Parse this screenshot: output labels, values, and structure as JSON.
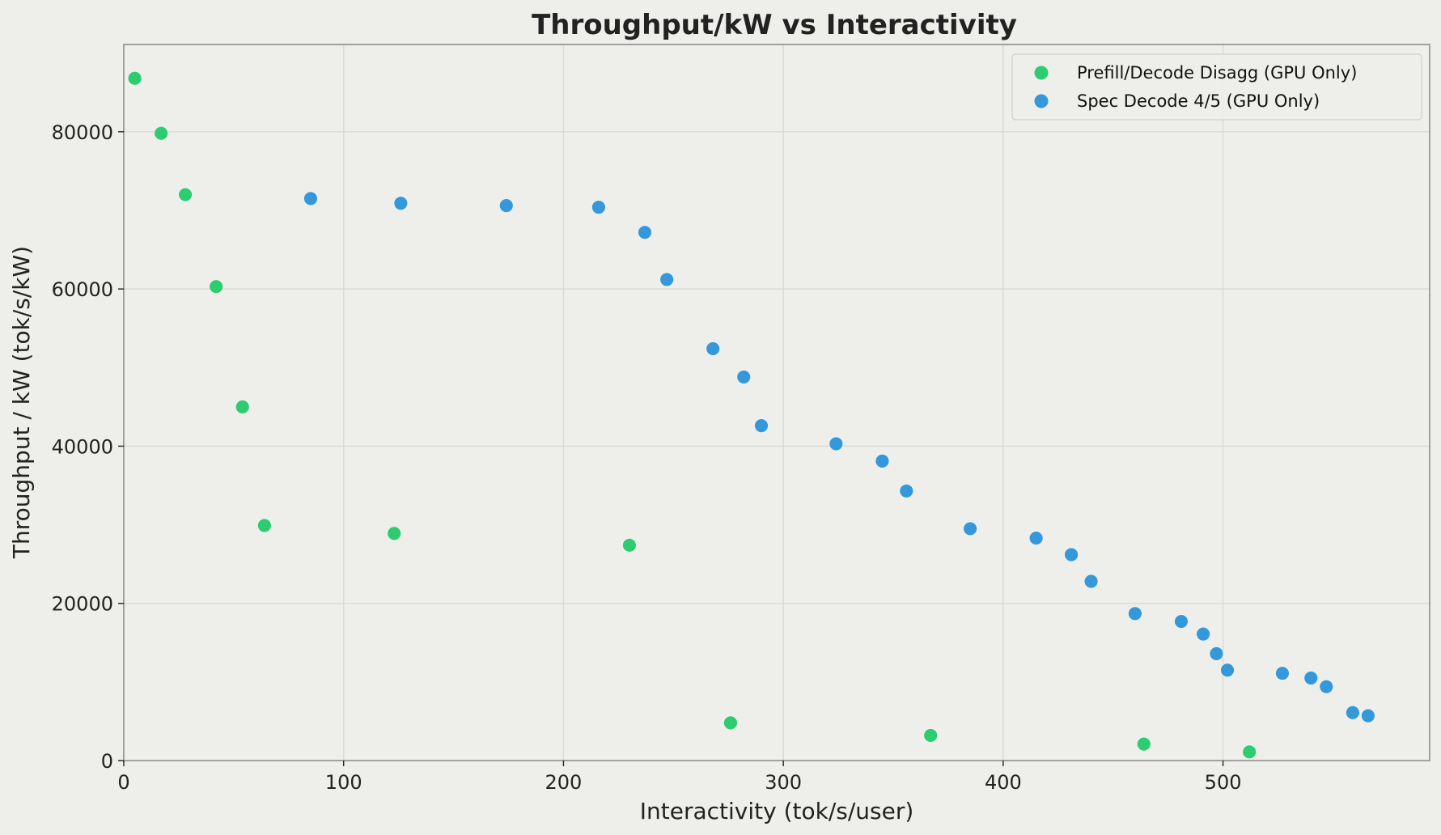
{
  "chart_data": {
    "type": "scatter",
    "title": "Throughput/kW vs Interactivity",
    "xlabel": "Interactivity (tok/s/user)",
    "ylabel": "Throughput / kW  (tok/s/kW)",
    "xlim": [
      0,
      594
    ],
    "ylim": [
      0,
      91100
    ],
    "xticks": [
      0,
      100,
      200,
      300,
      400,
      500
    ],
    "yticks": [
      0,
      20000,
      40000,
      60000,
      80000
    ],
    "grid": true,
    "legend_position": "upper right",
    "series": [
      {
        "name": "Prefill/Decode Disagg (GPU Only)",
        "color": "#2ecc71",
        "points": [
          [
            5,
            86800
          ],
          [
            17,
            79800
          ],
          [
            28,
            72000
          ],
          [
            42,
            60300
          ],
          [
            54,
            45000
          ],
          [
            64,
            29900
          ],
          [
            123,
            28900
          ],
          [
            230,
            27400
          ],
          [
            276,
            4800
          ],
          [
            367,
            3200
          ],
          [
            464,
            2100
          ],
          [
            512,
            1100
          ]
        ]
      },
      {
        "name": "Spec Decode 4/5 (GPU Only)",
        "color": "#3498db",
        "points": [
          [
            85,
            71500
          ],
          [
            126,
            70900
          ],
          [
            174,
            70600
          ],
          [
            216,
            70400
          ],
          [
            237,
            67200
          ],
          [
            247,
            61200
          ],
          [
            268,
            52400
          ],
          [
            282,
            48800
          ],
          [
            290,
            42600
          ],
          [
            324,
            40300
          ],
          [
            345,
            38100
          ],
          [
            356,
            34300
          ],
          [
            385,
            29500
          ],
          [
            415,
            28300
          ],
          [
            431,
            26200
          ],
          [
            440,
            22800
          ],
          [
            460,
            18700
          ],
          [
            481,
            17700
          ],
          [
            491,
            16100
          ],
          [
            497,
            13600
          ],
          [
            502,
            11500
          ],
          [
            527,
            11100
          ],
          [
            540,
            10500
          ],
          [
            547,
            9400
          ],
          [
            559,
            6100
          ],
          [
            566,
            5700
          ]
        ]
      }
    ]
  }
}
